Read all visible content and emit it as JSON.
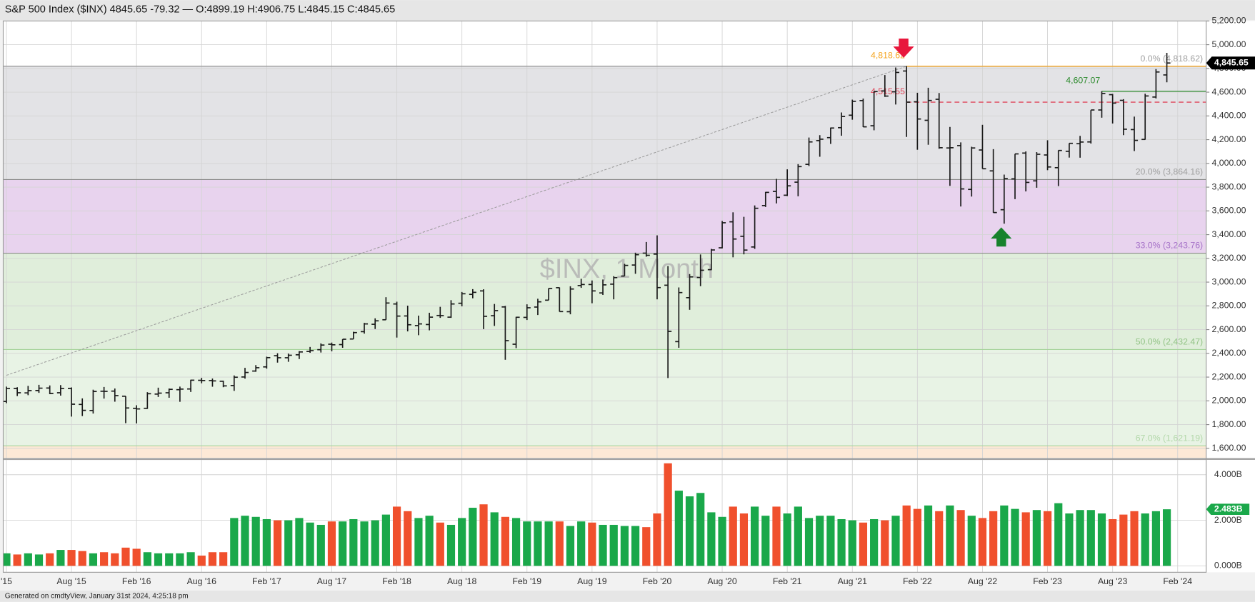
{
  "chart_data": {
    "type": "ohlc",
    "title": "S&P 500 Index ($INX)",
    "quote": "4845.65 -79.32 — O:4899.19 H:4906.75 L:4845.15 C:4845.65",
    "watermark": "$INX, 1 Month",
    "footer": "Generated on cmdtyView, January 31st 2024, 4:25:18 pm",
    "color": "#1a1a1a",
    "grid": true,
    "x": [
      "2015-02",
      "2015-03",
      "2015-04",
      "2015-05",
      "2015-06",
      "2015-07",
      "2015-08",
      "2015-09",
      "2015-10",
      "2015-11",
      "2015-12",
      "2016-01",
      "2016-02",
      "2016-03",
      "2016-04",
      "2016-05",
      "2016-06",
      "2016-07",
      "2016-08",
      "2016-09",
      "2016-10",
      "2016-11",
      "2016-12",
      "2017-01",
      "2017-02",
      "2017-03",
      "2017-04",
      "2017-05",
      "2017-06",
      "2017-07",
      "2017-08",
      "2017-09",
      "2017-10",
      "2017-11",
      "2017-12",
      "2018-01",
      "2018-02",
      "2018-03",
      "2018-04",
      "2018-05",
      "2018-06",
      "2018-07",
      "2018-08",
      "2018-09",
      "2018-10",
      "2018-11",
      "2018-12",
      "2019-01",
      "2019-02",
      "2019-03",
      "2019-04",
      "2019-05",
      "2019-06",
      "2019-07",
      "2019-08",
      "2019-09",
      "2019-10",
      "2019-11",
      "2019-12",
      "2020-01",
      "2020-02",
      "2020-03",
      "2020-04",
      "2020-05",
      "2020-06",
      "2020-07",
      "2020-08",
      "2020-09",
      "2020-10",
      "2020-11",
      "2020-12",
      "2021-01",
      "2021-02",
      "2021-03",
      "2021-04",
      "2021-05",
      "2021-06",
      "2021-07",
      "2021-08",
      "2021-09",
      "2021-10",
      "2021-11",
      "2021-12",
      "2022-01",
      "2022-02",
      "2022-03",
      "2022-04",
      "2022-05",
      "2022-06",
      "2022-07",
      "2022-08",
      "2022-09",
      "2022-10",
      "2022-11",
      "2022-12",
      "2023-01",
      "2023-02",
      "2023-03",
      "2023-04",
      "2023-05",
      "2023-06",
      "2023-07",
      "2023-08",
      "2023-09",
      "2023-10",
      "2023-11",
      "2023-12",
      "2024-01"
    ],
    "open": [
      1995,
      2105,
      2067,
      2087,
      2108,
      2068,
      2105,
      1970,
      1919,
      2081,
      2082,
      2039,
      1937,
      1937,
      2057,
      2068,
      2094,
      2100,
      2173,
      2171,
      2165,
      2129,
      2201,
      2251,
      2286,
      2380,
      2363,
      2388,
      2416,
      2431,
      2477,
      2474,
      2521,
      2583,
      2645,
      2683,
      2816,
      2715,
      2634,
      2643,
      2719,
      2705,
      2822,
      2897,
      2926,
      2717,
      2791,
      2477,
      2703,
      2790,
      2848,
      2953,
      2751,
      2971,
      2980,
      2909,
      2983,
      3051,
      3144,
      3244,
      3236,
      2974,
      2499,
      2869,
      3039,
      3105,
      3289,
      3508,
      3386,
      3296,
      3645,
      3764,
      3732,
      3842,
      3992,
      4192,
      4217,
      4301,
      4406,
      4529,
      4317,
      4610,
      4603,
      4778,
      4519,
      4363,
      4540,
      4130,
      4150,
      3781,
      4113,
      3937,
      3610,
      3870,
      4087,
      3853,
      4071,
      3964,
      4102,
      4166,
      4181,
      4450,
      4579,
      4531,
      4285,
      4202,
      4559,
      4745
    ],
    "high": [
      2120,
      2115,
      2126,
      2135,
      2130,
      2133,
      2113,
      2021,
      2094,
      2117,
      2104,
      2039,
      1963,
      2073,
      2111,
      2104,
      2120,
      2178,
      2194,
      2188,
      2170,
      2214,
      2278,
      2301,
      2372,
      2401,
      2398,
      2419,
      2454,
      2484,
      2491,
      2519,
      2582,
      2657,
      2695,
      2873,
      2835,
      2802,
      2718,
      2742,
      2792,
      2848,
      2917,
      2941,
      2940,
      2816,
      2800,
      2708,
      2813,
      2860,
      2949,
      2955,
      2965,
      3028,
      3014,
      3022,
      3050,
      3154,
      3248,
      3338,
      3394,
      3136,
      2955,
      3068,
      3233,
      3280,
      3515,
      3588,
      3550,
      3646,
      3760,
      3870,
      3950,
      3994,
      4218,
      4238,
      4302,
      4429,
      4537,
      4546,
      4608,
      4744,
      4808,
      4819,
      4595,
      4637,
      4593,
      4307,
      4177,
      4140,
      4325,
      4120,
      3906,
      4080,
      4101,
      4095,
      4195,
      4110,
      4170,
      4232,
      4449,
      4608,
      4585,
      4541,
      4394,
      4587,
      4794,
      4931
    ],
    "low": [
      1980,
      2040,
      2048,
      2067,
      2056,
      2044,
      1867,
      1872,
      1893,
      2019,
      1993,
      1812,
      1810,
      1932,
      2033,
      2026,
      1992,
      2075,
      2148,
      2119,
      2115,
      2084,
      2187,
      2245,
      2271,
      2322,
      2329,
      2352,
      2405,
      2407,
      2417,
      2447,
      2520,
      2566,
      2605,
      2683,
      2533,
      2585,
      2553,
      2594,
      2699,
      2699,
      2796,
      2864,
      2604,
      2631,
      2346,
      2444,
      2681,
      2723,
      2848,
      2751,
      2729,
      2952,
      2822,
      2892,
      2855,
      3051,
      3070,
      3214,
      2855,
      2192,
      2447,
      2767,
      2966,
      3101,
      3284,
      3209,
      3234,
      3280,
      3633,
      3663,
      3725,
      3723,
      3978,
      4056,
      4164,
      4233,
      4368,
      4306,
      4279,
      4560,
      4496,
      4223,
      4115,
      4157,
      4124,
      3811,
      3637,
      3721,
      3955,
      3585,
      3492,
      3699,
      3764,
      3795,
      3943,
      3809,
      4049,
      4048,
      4167,
      4385,
      4336,
      4238,
      4104,
      4200,
      4547,
      4683
    ],
    "close": [
      2104,
      2068,
      2086,
      2107,
      2063,
      2104,
      1972,
      1920,
      2079,
      2080,
      2044,
      1940,
      1932,
      2060,
      2065,
      2097,
      2099,
      2174,
      2171,
      2168,
      2126,
      2199,
      2239,
      2279,
      2364,
      2363,
      2384,
      2412,
      2423,
      2470,
      2472,
      2519,
      2575,
      2648,
      2674,
      2824,
      2714,
      2641,
      2648,
      2705,
      2718,
      2816,
      2902,
      2914,
      2712,
      2760,
      2507,
      2704,
      2784,
      2834,
      2946,
      2752,
      2942,
      2980,
      2926,
      2977,
      3038,
      3141,
      3231,
      3226,
      2954,
      2585,
      2912,
      3044,
      3100,
      3271,
      3500,
      3363,
      3270,
      3622,
      3756,
      3714,
      3811,
      3973,
      4181,
      4204,
      4298,
      4395,
      4523,
      4308,
      4605,
      4567,
      4766,
      4516,
      4374,
      4530,
      4132,
      4132,
      3785,
      4130,
      3955,
      3586,
      3872,
      4080,
      3840,
      4077,
      3970,
      4109,
      4169,
      4180,
      4450,
      4589,
      4508,
      4288,
      4194,
      4568,
      4770,
      4845.65
    ],
    "ylim": [
      1520,
      5200
    ],
    "yticks": [
      {
        "value": 1600,
        "label": "1,600.00"
      },
      {
        "value": 1800,
        "label": "1,800.00"
      },
      {
        "value": 2000,
        "label": "2,000.00"
      },
      {
        "value": 2200,
        "label": "2,200.00"
      },
      {
        "value": 2400,
        "label": "2,400.00"
      },
      {
        "value": 2600,
        "label": "2,600.00"
      },
      {
        "value": 2800,
        "label": "2,800.00"
      },
      {
        "value": 3000,
        "label": "3,000.00"
      },
      {
        "value": 3200,
        "label": "3,200.00"
      },
      {
        "value": 3400,
        "label": "3,400.00"
      },
      {
        "value": 3600,
        "label": "3,600.00"
      },
      {
        "value": 3800,
        "label": "3,800.00"
      },
      {
        "value": 4000,
        "label": "4,000.00"
      },
      {
        "value": 4200,
        "label": "4,200.00"
      },
      {
        "value": 4400,
        "label": "4,400.00"
      },
      {
        "value": 4600,
        "label": "4,600.00"
      },
      {
        "value": 4800,
        "label": "4,800.00"
      },
      {
        "value": 5000,
        "label": "5,000.00"
      },
      {
        "value": 5200,
        "label": "5,200.00"
      }
    ],
    "xticks": [
      {
        "value": "2015-02",
        "label": "'15"
      },
      {
        "value": "2015-08",
        "label": "Aug '15"
      },
      {
        "value": "2016-02",
        "label": "Feb '16"
      },
      {
        "value": "2016-08",
        "label": "Aug '16"
      },
      {
        "value": "2017-02",
        "label": "Feb '17"
      },
      {
        "value": "2017-08",
        "label": "Aug '17"
      },
      {
        "value": "2018-02",
        "label": "Feb '18"
      },
      {
        "value": "2018-08",
        "label": "Aug '18"
      },
      {
        "value": "2019-02",
        "label": "Feb '19"
      },
      {
        "value": "2019-08",
        "label": "Aug '19"
      },
      {
        "value": "2020-02",
        "label": "Feb '20"
      },
      {
        "value": "2020-08",
        "label": "Aug '20"
      },
      {
        "value": "2021-02",
        "label": "Feb '21"
      },
      {
        "value": "2021-08",
        "label": "Aug '21"
      },
      {
        "value": "2022-02",
        "label": "Feb '22"
      },
      {
        "value": "2022-08",
        "label": "Aug '22"
      },
      {
        "value": "2023-02",
        "label": "Feb '23"
      },
      {
        "value": "2023-08",
        "label": "Aug '23"
      },
      {
        "value": "2024-02",
        "label": "Feb '24"
      }
    ],
    "fib_levels": [
      {
        "value": 4818.62,
        "label": "0.0% (4,818.62)",
        "band_color": "#e3e3e6",
        "line_color": "#8a8a8a",
        "label_color": "#a0a0a0"
      },
      {
        "value": 3864.16,
        "label": "20.0% (3,864.16)",
        "band_color": "#e8d3ee",
        "line_color": "#8a8a8a",
        "label_color": "#a0a0a0"
      },
      {
        "value": 3243.76,
        "label": "33.0% (3,243.76)",
        "band_color": "#e0eedb",
        "line_color": "#8a8a8a",
        "label_color": "#a672c8"
      },
      {
        "value": 2432.47,
        "label": "50.0% (2,432.47)",
        "band_color": "#e8f3e5",
        "line_color": "#a6d39a",
        "label_color": "#93c487"
      },
      {
        "value": 1621.19,
        "label": "67.0% (1,621.19)",
        "band_color": "#fde9d6",
        "line_color": "#a6d39a",
        "label_color": "#b3d8aa"
      }
    ],
    "lines": [
      {
        "value": 4818.62,
        "label": "4,818.62",
        "from": "2022-01",
        "color": "#f5a623",
        "dashed": false
      },
      {
        "value": 4607.07,
        "label": "4,607.07",
        "from": "2023-07",
        "color": "#2e8b2e",
        "dashed": false
      },
      {
        "value": 4515.55,
        "label": "4,515.55",
        "from": "2022-01",
        "color": "#e0465a",
        "dashed": true
      }
    ],
    "trendline": {
      "from": [
        "2015-02",
        2215
      ],
      "to": [
        "2022-01",
        4818.62
      ],
      "color": "#9a9a9a"
    },
    "last_price": {
      "value": 4845.65,
      "label": "4,845.65"
    },
    "volume": {
      "values": [
        0.55,
        0.5,
        0.55,
        0.5,
        0.55,
        0.7,
        0.7,
        0.65,
        0.55,
        0.6,
        0.55,
        0.8,
        0.75,
        0.6,
        0.55,
        0.55,
        0.55,
        0.6,
        0.45,
        0.6,
        0.6,
        2.1,
        2.2,
        2.15,
        2.05,
        2.0,
        2.0,
        2.1,
        1.9,
        1.8,
        1.95,
        1.95,
        2.05,
        1.95,
        2.0,
        2.25,
        2.6,
        2.4,
        2.1,
        2.2,
        1.9,
        1.8,
        2.1,
        2.55,
        2.7,
        2.35,
        2.15,
        2.1,
        1.95,
        1.95,
        1.95,
        1.95,
        1.75,
        1.95,
        1.9,
        1.8,
        1.8,
        1.75,
        1.75,
        1.7,
        2.3,
        4.5,
        3.3,
        3.05,
        3.2,
        2.35,
        2.15,
        2.6,
        2.3,
        2.6,
        2.2,
        2.6,
        2.3,
        2.6,
        2.1,
        2.2,
        2.2,
        2.05,
        2.0,
        1.9,
        2.05,
        2.0,
        2.2,
        2.65,
        2.5,
        2.65,
        2.4,
        2.65,
        2.45,
        2.2,
        2.1,
        2.4,
        2.65,
        2.5,
        2.35,
        2.45,
        2.4,
        2.75,
        2.3,
        2.45,
        2.45,
        2.3,
        2.05,
        2.25,
        2.4,
        2.3,
        2.4,
        2.483
      ],
      "ylim": [
        0,
        4.6
      ],
      "yticks": [
        {
          "value": 0,
          "label": "0.000B"
        },
        {
          "value": 2,
          "label": "2.000B"
        },
        {
          "value": 4,
          "label": "4.000B"
        }
      ],
      "up_color": "#1aa84a",
      "down_color": "#f0502d",
      "last": {
        "value": 2.483,
        "label": "2.483B"
      }
    }
  }
}
